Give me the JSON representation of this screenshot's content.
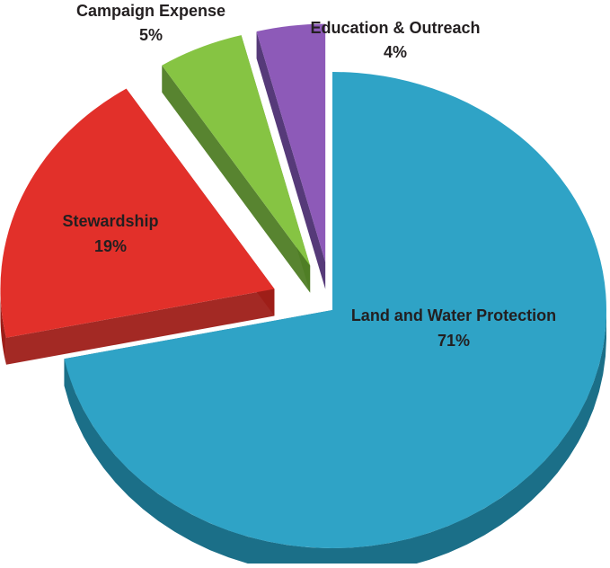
{
  "chart_data": {
    "type": "pie",
    "title": "",
    "categories": [
      "Land and Water Protection",
      "Stewardship",
      "Campaign Expense",
      "Education & Outreach"
    ],
    "values": [
      71,
      19,
      5,
      4
    ],
    "labels": [
      {
        "name": "Land and Water Protection",
        "percent": "71%"
      },
      {
        "name": "Stewardship",
        "percent": "19%"
      },
      {
        "name": "Campaign Expense",
        "percent": "5%"
      },
      {
        "name": "Education & Outreach",
        "percent": "4%"
      }
    ],
    "colors": [
      "#2fa3c6",
      "#e2302a",
      "#86c443",
      "#8d5ab8"
    ],
    "side_colors": [
      "#1b6f88",
      "#9e1d18",
      "#4f7d25",
      "#4d2f72"
    ],
    "exploded": true,
    "three_d": true,
    "legend": "none"
  }
}
